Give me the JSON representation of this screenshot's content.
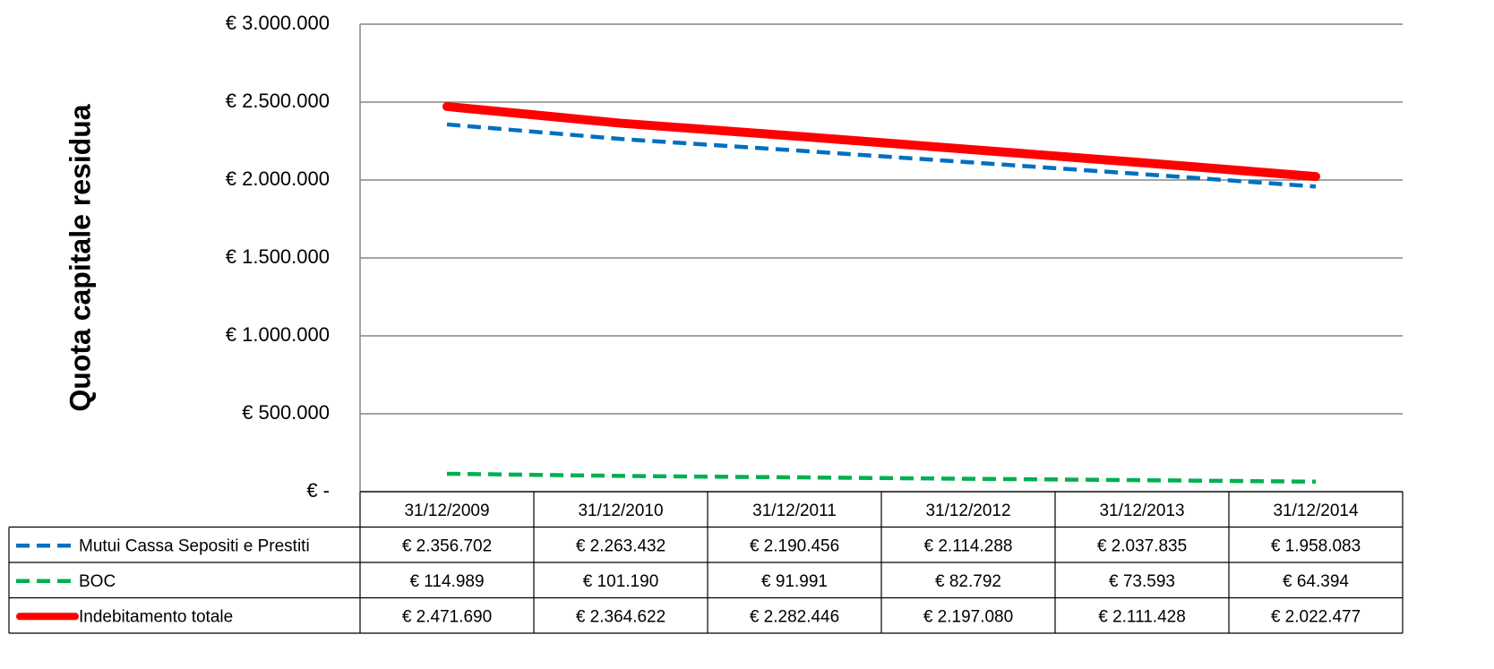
{
  "chart_data": {
    "type": "line",
    "y_label": "Quota capitale residua",
    "categories": [
      "31/12/2009",
      "31/12/2010",
      "31/12/2011",
      "31/12/2012",
      "31/12/2013",
      "31/12/2014"
    ],
    "series": [
      {
        "name": "Mutui Cassa Sepositi e Prestiti",
        "color": "#0070c0",
        "style": "dashed",
        "values": [
          2356702,
          2263432,
          2190456,
          2114288,
          2037835,
          1958083
        ],
        "value_labels": [
          "€ 2.356.702",
          "€ 2.263.432",
          "€ 2.190.456",
          "€ 2.114.288",
          "€ 2.037.835",
          "€ 1.958.083"
        ]
      },
      {
        "name": "BOC",
        "color": "#00b050",
        "style": "dashed",
        "values": [
          114989,
          101190,
          91991,
          82792,
          73593,
          64394
        ],
        "value_labels": [
          "€ 114.989",
          "€ 101.190",
          "€ 91.991",
          "€ 82.792",
          "€ 73.593",
          "€ 64.394"
        ]
      },
      {
        "name": "Indebitamento totale",
        "color": "#ff0000",
        "style": "solid",
        "values": [
          2471690,
          2364622,
          2282446,
          2197080,
          2111428,
          2022477
        ],
        "value_labels": [
          "€ 2.471.690",
          "€ 2.364.622",
          "€ 2.282.446",
          "€ 2.197.080",
          "€ 2.111.428",
          "€ 2.022.477"
        ]
      }
    ],
    "ylim": [
      0,
      3000000
    ],
    "yticks": [
      {
        "value": 0,
        "label": "€ -"
      },
      {
        "value": 500000,
        "label": "€ 500.000"
      },
      {
        "value": 1000000,
        "label": "€ 1.000.000"
      },
      {
        "value": 1500000,
        "label": "€ 1.500.000"
      },
      {
        "value": 2000000,
        "label": "€ 2.000.000"
      },
      {
        "value": 2500000,
        "label": "€ 2.500.000"
      },
      {
        "value": 3000000,
        "label": "€ 3.000.000"
      }
    ],
    "grid": true
  }
}
